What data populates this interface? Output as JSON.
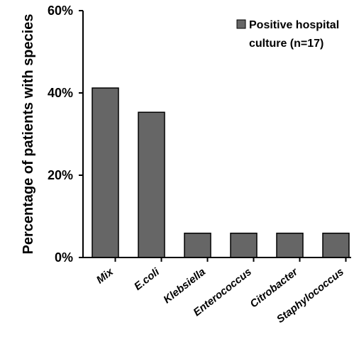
{
  "chart_data": {
    "type": "bar",
    "title": "",
    "xlabel": "",
    "ylabel": "Percentage of patients with species",
    "categories": [
      "Mix",
      "E.coli",
      "Klebsiella",
      "Enterococcus",
      "Citrobacter",
      "Staphylococcus"
    ],
    "series": [
      {
        "name": "Positive hospital culture (n=17)",
        "values": [
          41.2,
          35.3,
          5.9,
          5.9,
          5.9,
          5.9
        ]
      }
    ],
    "ylim": [
      0,
      60
    ],
    "yticks": [
      "0%",
      "20%",
      "40%",
      "60%"
    ],
    "grid": false,
    "legend_position": "top-right",
    "legend_lines": [
      "Positive hospital",
      "culture (n=17)"
    ],
    "colors": {
      "bar": "#666666",
      "bar_stroke": "#000000",
      "axis": "#000000"
    }
  }
}
